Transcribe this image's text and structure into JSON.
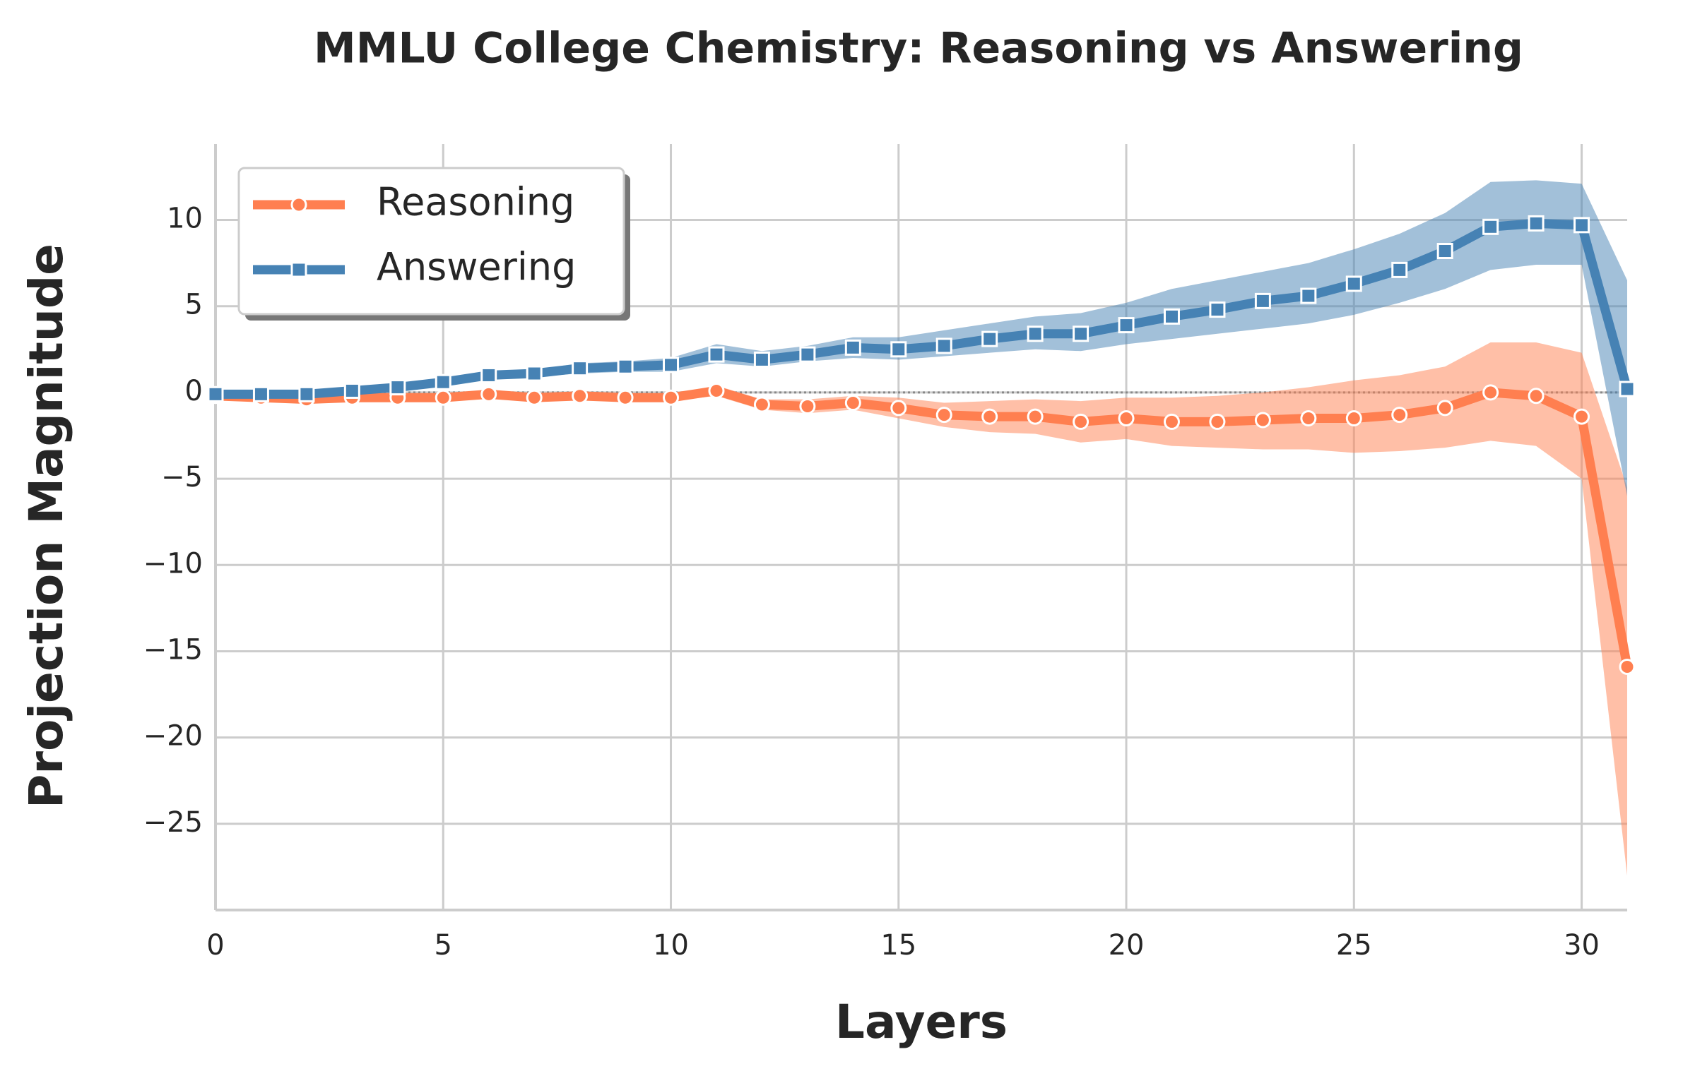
{
  "chart_data": {
    "type": "line",
    "title": "MMLU College Chemistry: Reasoning vs Answering",
    "xlabel": "Layers",
    "ylabel": "Projection Magnitude",
    "x": [
      0,
      1,
      2,
      3,
      4,
      5,
      6,
      7,
      8,
      9,
      10,
      11,
      12,
      13,
      14,
      15,
      16,
      17,
      18,
      19,
      20,
      21,
      22,
      23,
      24,
      25,
      26,
      27,
      28,
      29,
      30,
      31
    ],
    "series": [
      {
        "name": "Reasoning",
        "color": "#ff7f50",
        "marker": "circle",
        "values": [
          -0.2,
          -0.3,
          -0.4,
          -0.3,
          -0.3,
          -0.3,
          -0.1,
          -0.3,
          -0.2,
          -0.3,
          -0.3,
          0.1,
          -0.7,
          -0.8,
          -0.6,
          -0.9,
          -1.3,
          -1.4,
          -1.4,
          -1.7,
          -1.5,
          -1.7,
          -1.7,
          -1.6,
          -1.5,
          -1.5,
          -1.3,
          -0.9,
          0.0,
          -0.2,
          -1.4,
          -15.9
        ],
        "lower": [
          -0.3,
          -0.5,
          -0.6,
          -0.5,
          -0.5,
          -0.5,
          -0.3,
          -0.5,
          -0.4,
          -0.5,
          -0.5,
          -0.2,
          -1.0,
          -1.2,
          -1.0,
          -1.5,
          -2.0,
          -2.3,
          -2.4,
          -2.9,
          -2.7,
          -3.1,
          -3.2,
          -3.3,
          -3.3,
          -3.5,
          -3.4,
          -3.2,
          -2.8,
          -3.1,
          -5.0,
          -28.0
        ],
        "upper": [
          -0.1,
          -0.1,
          -0.2,
          -0.1,
          -0.1,
          -0.1,
          0.1,
          -0.1,
          0.0,
          -0.1,
          -0.1,
          0.4,
          -0.4,
          -0.4,
          -0.2,
          -0.3,
          -0.6,
          -0.5,
          -0.4,
          -0.5,
          -0.3,
          -0.3,
          -0.2,
          0.0,
          0.3,
          0.7,
          1.0,
          1.5,
          2.9,
          2.9,
          2.3,
          -5.5
        ]
      },
      {
        "name": "Answering",
        "color": "#4682b4",
        "marker": "square",
        "values": [
          -0.1,
          -0.1,
          -0.1,
          0.1,
          0.3,
          0.6,
          1.0,
          1.1,
          1.4,
          1.5,
          1.6,
          2.2,
          1.9,
          2.2,
          2.6,
          2.5,
          2.7,
          3.1,
          3.4,
          3.4,
          3.9,
          4.4,
          4.8,
          5.3,
          5.6,
          6.3,
          7.1,
          8.2,
          9.6,
          9.8,
          9.7,
          0.2
        ],
        "lower": [
          -0.2,
          -0.2,
          -0.2,
          0.0,
          0.1,
          0.4,
          0.8,
          0.9,
          1.1,
          1.2,
          1.2,
          1.7,
          1.5,
          1.8,
          2.0,
          1.9,
          2.1,
          2.3,
          2.5,
          2.4,
          2.8,
          3.1,
          3.4,
          3.7,
          4.0,
          4.5,
          5.2,
          6.0,
          7.1,
          7.4,
          7.4,
          -6.0
        ],
        "upper": [
          0.0,
          0.0,
          0.0,
          0.2,
          0.5,
          0.8,
          1.2,
          1.3,
          1.7,
          1.8,
          2.0,
          2.8,
          2.4,
          2.7,
          3.2,
          3.2,
          3.6,
          4.0,
          4.4,
          4.6,
          5.2,
          6.0,
          6.5,
          7.0,
          7.5,
          8.3,
          9.2,
          10.4,
          12.2,
          12.3,
          12.1,
          6.5
        ]
      }
    ],
    "hline": 0,
    "xlim": [
      0,
      31
    ],
    "xticks": [
      0,
      5,
      10,
      15,
      20,
      25,
      30
    ],
    "ylim": [
      -30,
      14.4
    ],
    "yticks": [
      {
        "value": -25,
        "label": "−25"
      },
      {
        "value": -20,
        "label": "−20"
      },
      {
        "value": -15,
        "label": "−15"
      },
      {
        "value": -10,
        "label": "−10"
      },
      {
        "value": -5,
        "label": "−5"
      },
      0,
      5,
      10
    ],
    "grid": true,
    "legend": "upper left"
  }
}
